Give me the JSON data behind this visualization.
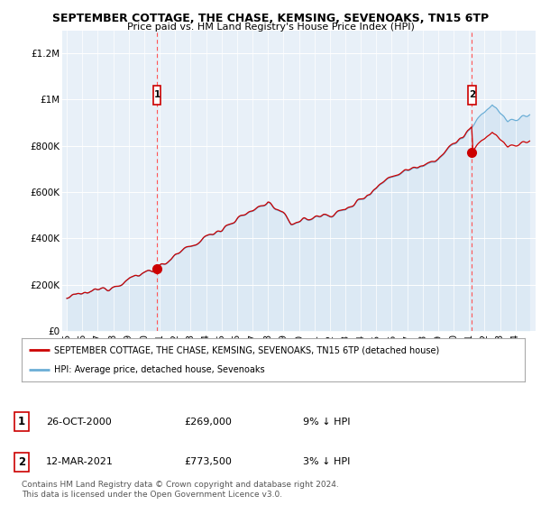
{
  "title": "SEPTEMBER COTTAGE, THE CHASE, KEMSING, SEVENOAKS, TN15 6TP",
  "subtitle": "Price paid vs. HM Land Registry's House Price Index (HPI)",
  "legend_line1": "SEPTEMBER COTTAGE, THE CHASE, KEMSING, SEVENOAKS, TN15 6TP (detached house)",
  "legend_line2": "HPI: Average price, detached house, Sevenoaks",
  "transaction1_date": "26-OCT-2000",
  "transaction1_price": "£269,000",
  "transaction1_hpi": "9% ↓ HPI",
  "transaction2_date": "12-MAR-2021",
  "transaction2_price": "£773,500",
  "transaction2_hpi": "3% ↓ HPI",
  "footer": "Contains HM Land Registry data © Crown copyright and database right 2024.\nThis data is licensed under the Open Government Licence v3.0.",
  "ylabel_ticks": [
    "£0",
    "£200K",
    "£400K",
    "£600K",
    "£800K",
    "£1M",
    "£1.2M"
  ],
  "ylabel_values": [
    0,
    200000,
    400000,
    600000,
    800000,
    1000000,
    1200000
  ],
  "ylim": [
    0,
    1300000
  ],
  "background_color": "#ffffff",
  "plot_bg_color": "#e8f0f8",
  "hpi_line_color": "#6baed6",
  "price_line_color": "#cc0000",
  "hpi_fill_color": "#cce0f0",
  "vline_color": "#ff5555",
  "purchase1_time": 2000.83,
  "purchase2_time": 2021.19,
  "purchase1_price": 269000,
  "purchase2_price": 773500
}
